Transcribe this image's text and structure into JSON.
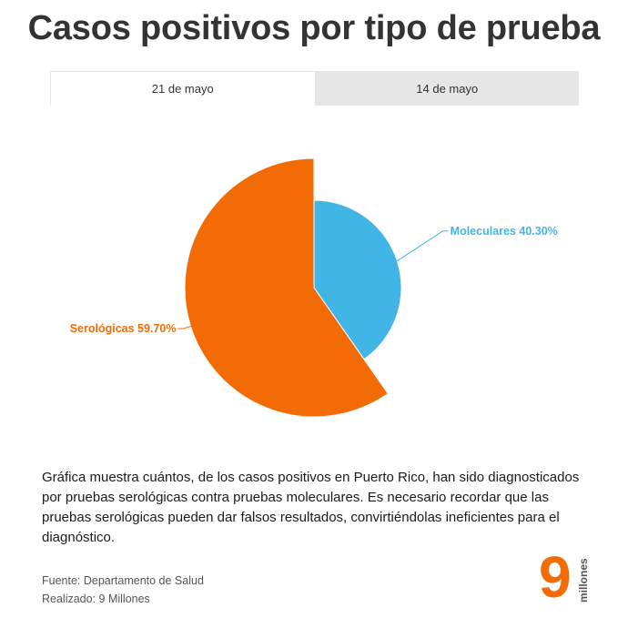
{
  "title": "Casos positivos por tipo de prueba",
  "tabs": [
    {
      "label": "21 de mayo",
      "active": true
    },
    {
      "label": "14 de mayo",
      "active": false
    }
  ],
  "chart_data": {
    "type": "pie",
    "title": "",
    "slices": [
      {
        "label": "Moleculares",
        "value": 40.3,
        "display": "Moleculares 40.30%",
        "color": "#41b6e6",
        "offset": false
      },
      {
        "label": "Serológicas",
        "value": 59.7,
        "display": "Serológicas 59.70%",
        "color": "#f26b05",
        "offset": true
      }
    ]
  },
  "description": "Gráfica muestra cuántos, de los casos positivos en Puerto Rico, han sido diagnosticados por pruebas serológicas contra pruebas moleculares. Es necesario recordar que las pruebas serológicas pueden dar falsos resultados, convirtiéndolas ineficientes para el diagnóstico.",
  "source": {
    "fuente": "Fuente: Departamento de Salud",
    "realizado": "Realizado: 9 Millones"
  },
  "logo": {
    "digit": "9",
    "word": "millones",
    "color": "#f26b05"
  }
}
